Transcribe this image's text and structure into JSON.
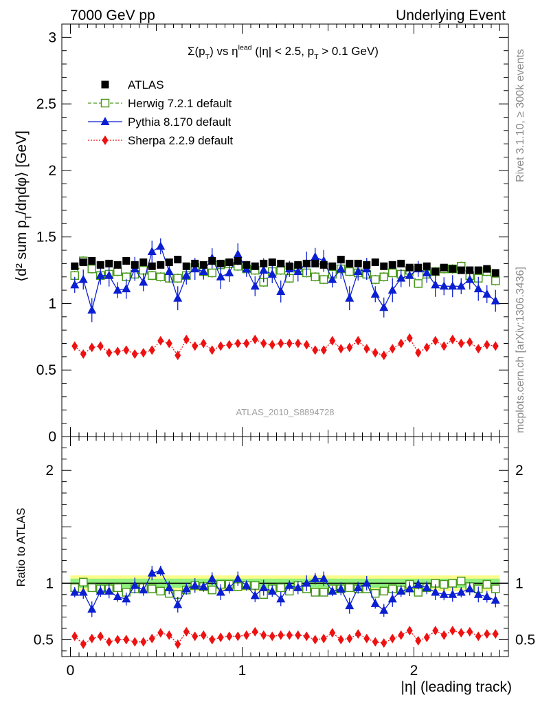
{
  "header": {
    "left": "7000 GeV pp",
    "right": "Underlying Event"
  },
  "side_labels": {
    "rivet": "Rivet 3.1.10, ≥ 300k events",
    "mcplots": "mcplots.cern.ch [arXiv:1306.3436]"
  },
  "analysis_ref": "ATLAS_2010_S8894728",
  "colors": {
    "atlas": "#000000",
    "herwig": "#4a9a1e",
    "pythia": "#0a1ed2",
    "sherpa": "#ee1111",
    "band_inner": "#8ef07e",
    "band_outer": "#fbfb8a"
  },
  "chart_data": [
    {
      "type": "scatter",
      "panel": "main",
      "title": "Σ(p_T) vs η^lead (|η| < 2.5, p_T > 0.1 GeV)",
      "ylabel": "⟨d² sum p_T/dηdφ⟩ [GeV]",
      "xlim": [
        -0.05,
        2.55
      ],
      "ylim": [
        0,
        3.1
      ],
      "yticks": [
        "0",
        "0.5",
        "1",
        "1.5",
        "2",
        "2.5",
        "3"
      ],
      "legend_position": "top-left",
      "x": [
        0.025,
        0.075,
        0.125,
        0.175,
        0.225,
        0.275,
        0.325,
        0.375,
        0.425,
        0.475,
        0.525,
        0.575,
        0.625,
        0.675,
        0.725,
        0.775,
        0.825,
        0.875,
        0.925,
        0.975,
        1.025,
        1.075,
        1.125,
        1.175,
        1.225,
        1.275,
        1.325,
        1.375,
        1.425,
        1.475,
        1.525,
        1.575,
        1.625,
        1.675,
        1.725,
        1.775,
        1.825,
        1.875,
        1.925,
        1.975,
        2.025,
        2.075,
        2.125,
        2.175,
        2.225,
        2.275,
        2.325,
        2.375,
        2.425,
        2.475
      ],
      "series": [
        {
          "name": "ATLAS",
          "values": [
            1.28,
            1.31,
            1.32,
            1.29,
            1.3,
            1.29,
            1.32,
            1.29,
            1.31,
            1.28,
            1.29,
            1.31,
            1.33,
            1.28,
            1.3,
            1.29,
            1.32,
            1.3,
            1.31,
            1.32,
            1.29,
            1.28,
            1.3,
            1.31,
            1.3,
            1.28,
            1.29,
            1.3,
            1.3,
            1.29,
            1.28,
            1.33,
            1.3,
            1.3,
            1.29,
            1.31,
            1.28,
            1.29,
            1.3,
            1.27,
            1.27,
            1.28,
            1.24,
            1.27,
            1.26,
            1.25,
            1.25,
            1.25,
            1.26,
            1.23
          ]
        },
        {
          "name": "Herwig 7.2.1 default",
          "values": [
            1.21,
            1.32,
            1.26,
            1.21,
            1.22,
            1.24,
            1.2,
            1.22,
            1.25,
            1.21,
            1.2,
            1.19,
            1.19,
            1.21,
            1.27,
            1.24,
            1.23,
            1.29,
            1.3,
            1.28,
            1.26,
            1.25,
            1.16,
            1.24,
            1.25,
            1.19,
            1.27,
            1.23,
            1.2,
            1.18,
            1.22,
            1.26,
            1.24,
            1.23,
            1.22,
            1.18,
            1.2,
            1.23,
            1.22,
            1.25,
            1.15,
            1.22,
            1.24,
            1.26,
            1.26,
            1.28,
            1.21,
            1.19,
            1.24,
            1.17
          ]
        },
        {
          "name": "Pythia 8.170 default",
          "values": [
            1.14,
            1.18,
            0.95,
            1.21,
            1.21,
            1.1,
            1.11,
            1.26,
            1.16,
            1.39,
            1.43,
            1.24,
            1.04,
            1.21,
            1.26,
            1.24,
            1.34,
            1.2,
            1.23,
            1.37,
            1.26,
            1.13,
            1.25,
            1.22,
            1.09,
            1.26,
            1.24,
            1.3,
            1.35,
            1.32,
            1.18,
            1.26,
            1.04,
            1.24,
            1.26,
            1.07,
            0.97,
            1.1,
            1.19,
            1.21,
            1.26,
            1.23,
            1.14,
            1.13,
            1.13,
            1.13,
            1.18,
            1.11,
            1.07,
            1.02
          ]
        },
        {
          "name": "Sherpa 2.2.9 default",
          "values": [
            0.68,
            0.62,
            0.67,
            0.68,
            0.63,
            0.64,
            0.65,
            0.62,
            0.63,
            0.65,
            0.72,
            0.7,
            0.61,
            0.73,
            0.68,
            0.7,
            0.65,
            0.68,
            0.69,
            0.7,
            0.7,
            0.73,
            0.7,
            0.69,
            0.7,
            0.7,
            0.7,
            0.69,
            0.65,
            0.65,
            0.72,
            0.66,
            0.67,
            0.72,
            0.66,
            0.63,
            0.61,
            0.66,
            0.7,
            0.74,
            0.63,
            0.67,
            0.72,
            0.68,
            0.73,
            0.7,
            0.71,
            0.66,
            0.69,
            0.68
          ]
        }
      ]
    },
    {
      "type": "scatter",
      "panel": "ratio",
      "xlabel": "|η| (leading track)",
      "ylabel": "Ratio to ATLAS",
      "xlim": [
        -0.05,
        2.55
      ],
      "ylim": [
        0.35,
        2.3
      ],
      "xticks": [
        "0",
        "1",
        "2"
      ],
      "yticks": [
        "0.5",
        "1",
        "2"
      ],
      "band_inner_half_width": 0.04,
      "band_outer_half_width": 0.07,
      "x": [
        0.025,
        0.075,
        0.125,
        0.175,
        0.225,
        0.275,
        0.325,
        0.375,
        0.425,
        0.475,
        0.525,
        0.575,
        0.625,
        0.675,
        0.725,
        0.775,
        0.825,
        0.875,
        0.925,
        0.975,
        1.025,
        1.075,
        1.125,
        1.175,
        1.225,
        1.275,
        1.325,
        1.375,
        1.425,
        1.475,
        1.525,
        1.575,
        1.625,
        1.675,
        1.725,
        1.775,
        1.825,
        1.875,
        1.925,
        1.975,
        2.025,
        2.075,
        2.125,
        2.175,
        2.225,
        2.275,
        2.325,
        2.375,
        2.425,
        2.475
      ],
      "series": [
        {
          "name": "Herwig 7.2.1 default",
          "values": [
            0.96,
            1.01,
            0.96,
            0.95,
            0.95,
            0.96,
            0.92,
            0.95,
            0.96,
            0.95,
            0.93,
            0.91,
            0.9,
            0.94,
            0.98,
            0.97,
            0.94,
            0.99,
            0.99,
            0.97,
            0.98,
            0.98,
            0.9,
            0.95,
            0.96,
            0.93,
            0.98,
            0.95,
            0.92,
            0.92,
            0.95,
            0.95,
            0.96,
            0.95,
            0.95,
            0.91,
            0.93,
            0.95,
            0.94,
            0.99,
            0.92,
            0.96,
            1.0,
            0.99,
            1.0,
            1.02,
            0.97,
            0.95,
            0.99,
            0.95
          ]
        },
        {
          "name": "Pythia 8.170 default",
          "values": [
            0.92,
            0.92,
            0.77,
            0.93,
            0.93,
            0.88,
            0.86,
            0.98,
            0.94,
            1.09,
            1.11,
            0.96,
            0.81,
            0.95,
            0.98,
            0.97,
            1.04,
            0.92,
            0.96,
            1.04,
            0.98,
            0.89,
            0.96,
            0.93,
            0.86,
            0.98,
            0.96,
            1.0,
            1.04,
            1.04,
            0.93,
            0.95,
            0.8,
            0.96,
            1.0,
            0.82,
            0.76,
            0.86,
            0.93,
            0.95,
            0.99,
            0.96,
            0.92,
            0.9,
            0.9,
            0.92,
            0.95,
            0.9,
            0.88,
            0.85
          ]
        },
        {
          "name": "Sherpa 2.2.9 default",
          "values": [
            0.53,
            0.46,
            0.51,
            0.53,
            0.48,
            0.5,
            0.5,
            0.48,
            0.48,
            0.51,
            0.56,
            0.54,
            0.46,
            0.57,
            0.53,
            0.54,
            0.5,
            0.52,
            0.53,
            0.53,
            0.54,
            0.57,
            0.54,
            0.53,
            0.54,
            0.54,
            0.54,
            0.53,
            0.5,
            0.51,
            0.56,
            0.5,
            0.51,
            0.55,
            0.51,
            0.48,
            0.47,
            0.51,
            0.54,
            0.58,
            0.49,
            0.52,
            0.58,
            0.54,
            0.58,
            0.56,
            0.57,
            0.53,
            0.55,
            0.55
          ]
        }
      ]
    }
  ]
}
